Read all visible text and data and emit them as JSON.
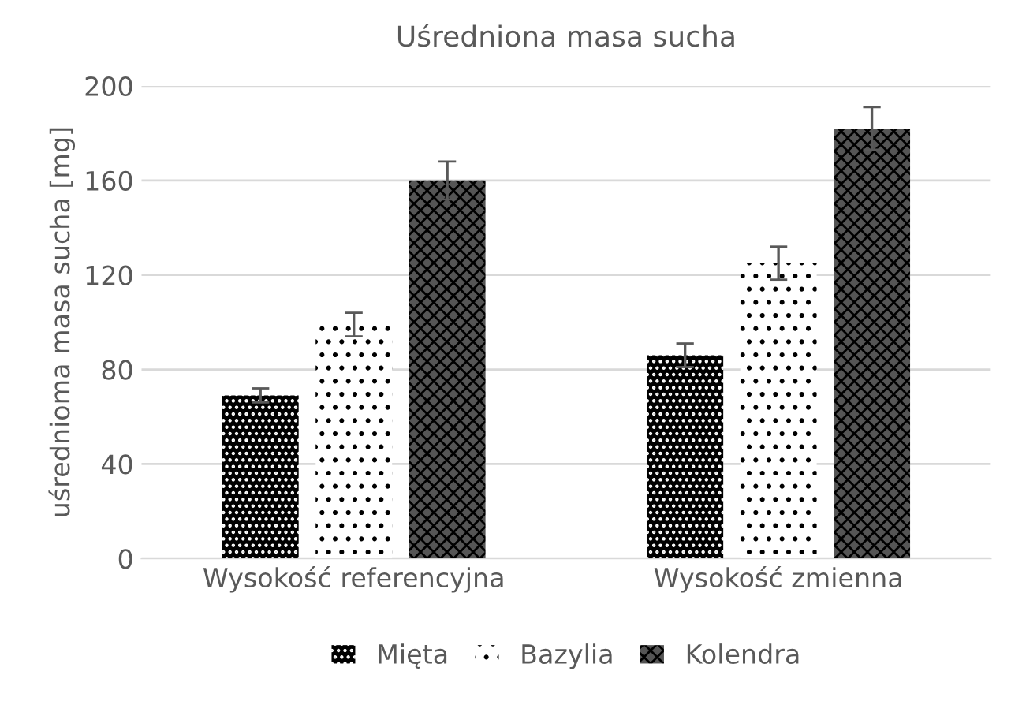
{
  "chart_data": {
    "type": "bar",
    "title": "Uśredniona masa sucha",
    "ylabel": "uśrednioma masa sucha [mg]",
    "categories": [
      "Wysokość referencyjna",
      "Wysokość zmienna"
    ],
    "series": [
      {
        "name": "Mięta",
        "color": "#000000",
        "values": [
          69,
          86
        ],
        "errors": [
          3,
          5
        ]
      },
      {
        "name": "Bazylia",
        "color": "#ffffff",
        "values": [
          99,
          125
        ],
        "errors": [
          5,
          7
        ]
      },
      {
        "name": "Kolendra",
        "color": "#555555",
        "values": [
          160,
          182
        ],
        "errors": [
          8,
          9
        ]
      }
    ],
    "ylim": [
      0,
      200
    ],
    "yticks": [
      0,
      40,
      80,
      120,
      160,
      200
    ],
    "grid": "y",
    "legend": "bottom"
  }
}
